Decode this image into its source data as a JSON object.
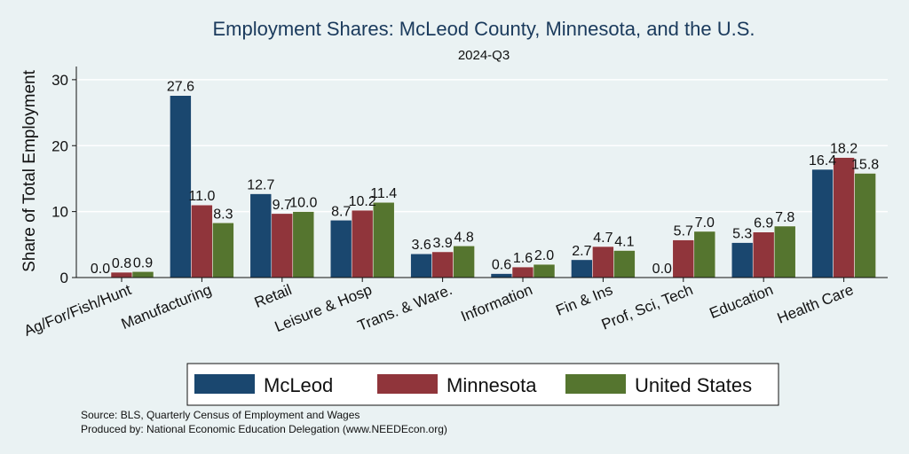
{
  "chart_data": {
    "type": "bar",
    "title": "Employment Shares: McLeod County, Minnesota, and the U.S.",
    "subtitle": "2024-Q3",
    "xlabel": "",
    "ylabel": "Share of Total Employment",
    "ylim": [
      0,
      32
    ],
    "yticks": [
      0,
      10,
      20,
      30
    ],
    "grid": true,
    "legend_position": "bottom",
    "categories": [
      "Ag/For/Fish/Hunt",
      "Manufacturing",
      "Retail",
      "Leisure & Hosp",
      "Trans. & Ware.",
      "Information",
      "Fin & Ins",
      "Prof, Sci, Tech",
      "Education",
      "Health Care"
    ],
    "series": [
      {
        "name": "McLeod",
        "color": "#1a476f",
        "values": [
          0.0,
          27.6,
          12.7,
          8.7,
          3.6,
          0.6,
          2.7,
          0.0,
          5.3,
          16.4
        ]
      },
      {
        "name": "Minnesota",
        "color": "#90353b",
        "values": [
          0.8,
          11.0,
          9.7,
          10.2,
          3.9,
          1.6,
          4.7,
          5.7,
          6.9,
          18.2
        ]
      },
      {
        "name": "United States",
        "color": "#55752f",
        "values": [
          0.9,
          8.3,
          10.0,
          11.4,
          4.8,
          2.0,
          4.1,
          7.0,
          7.8,
          15.8
        ]
      }
    ],
    "data_labels": [
      [
        "0.0",
        "27.6",
        "12.7",
        "8.7",
        "3.6",
        "0.6",
        "2.7",
        "0.0",
        "5.3",
        "16.4"
      ],
      [
        "0.8",
        "11.0",
        "9.7",
        "10.2",
        "3.9",
        "1.6",
        "4.7",
        "5.7",
        "6.9",
        "18.2"
      ],
      [
        "0.9",
        "8.3",
        "10.0",
        "11.4",
        "4.8",
        "2.0",
        "4.1",
        "7.0",
        "7.8",
        "15.8"
      ]
    ]
  },
  "notes": {
    "source": "Source: BLS, Quarterly Census of Employment and Wages",
    "produced_by": "Produced by: National Economic Education Delegation (www.NEEDEcon.org)"
  }
}
